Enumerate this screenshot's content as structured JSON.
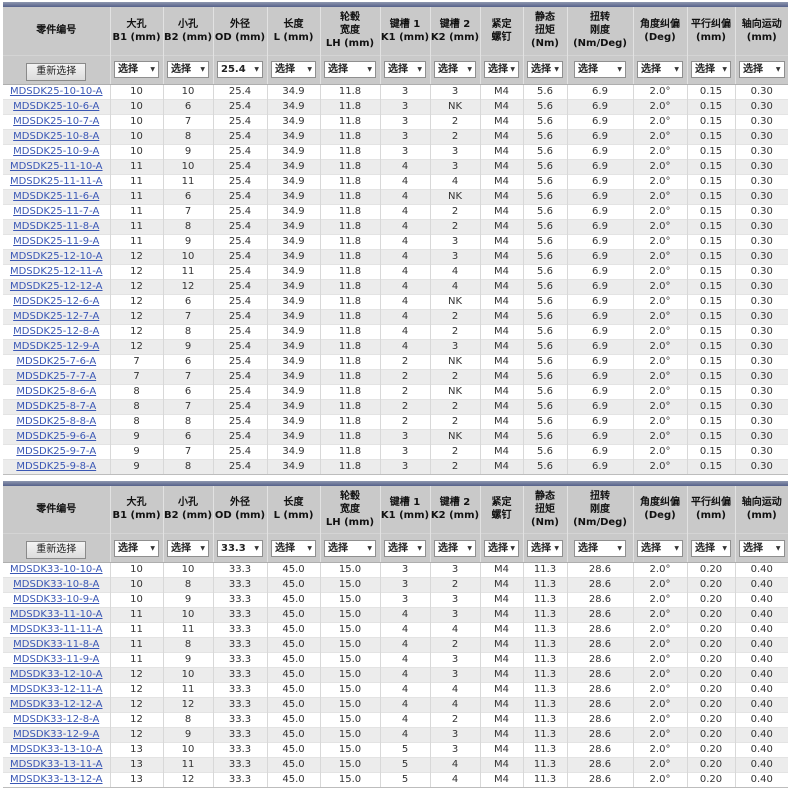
{
  "colors": {
    "header_bg": "#c9c9c9",
    "row_alt_bg": "#ececec",
    "link_color": "#3a57b5",
    "top_bar_dark": "#55618a",
    "top_bar_light": "#8e97af",
    "text_color": "#333333"
  },
  "filter": {
    "reset_button_label": "重新选择",
    "select_placeholder": "选择",
    "dropdown_arrow": "▼"
  },
  "columns": [
    {
      "id": "part_number",
      "label": "零件编号"
    },
    {
      "id": "b1",
      "label": "大孔\nB1 (mm)"
    },
    {
      "id": "b2",
      "label": "小孔\nB2 (mm)"
    },
    {
      "id": "od",
      "label": "外径\nOD (mm)"
    },
    {
      "id": "length",
      "label": "长度\nL (mm)"
    },
    {
      "id": "hub_width",
      "label": "轮毂\n宽度\nLH (mm)"
    },
    {
      "id": "k1",
      "label": "键槽 1\nK1 (mm)"
    },
    {
      "id": "k2",
      "label": "键槽 2\nK2 (mm)"
    },
    {
      "id": "set_screw",
      "label": "紧定\n螺钉"
    },
    {
      "id": "static_torque",
      "label": "静态\n扭矩\n(Nm)"
    },
    {
      "id": "torsional_stiffness",
      "label": "扭转\n刚度\n(Nm/Deg)"
    },
    {
      "id": "angular_misalignment",
      "label": "角度纠偏\n(Deg)"
    },
    {
      "id": "parallel_misalignment",
      "label": "平行纠偏\n(mm)"
    },
    {
      "id": "axial_motion",
      "label": "轴向运动\n(mm)"
    }
  ],
  "tables": [
    {
      "od_filter_value": "25.4",
      "rows": [
        [
          "MDSDK25-10-10-A",
          "10",
          "10",
          "25.4",
          "34.9",
          "11.8",
          "3",
          "3",
          "M4",
          "5.6",
          "6.9",
          "2.0°",
          "0.15",
          "0.30"
        ],
        [
          "MDSDK25-10-6-A",
          "10",
          "6",
          "25.4",
          "34.9",
          "11.8",
          "3",
          "NK",
          "M4",
          "5.6",
          "6.9",
          "2.0°",
          "0.15",
          "0.30"
        ],
        [
          "MDSDK25-10-7-A",
          "10",
          "7",
          "25.4",
          "34.9",
          "11.8",
          "3",
          "2",
          "M4",
          "5.6",
          "6.9",
          "2.0°",
          "0.15",
          "0.30"
        ],
        [
          "MDSDK25-10-8-A",
          "10",
          "8",
          "25.4",
          "34.9",
          "11.8",
          "3",
          "2",
          "M4",
          "5.6",
          "6.9",
          "2.0°",
          "0.15",
          "0.30"
        ],
        [
          "MDSDK25-10-9-A",
          "10",
          "9",
          "25.4",
          "34.9",
          "11.8",
          "3",
          "3",
          "M4",
          "5.6",
          "6.9",
          "2.0°",
          "0.15",
          "0.30"
        ],
        [
          "MDSDK25-11-10-A",
          "11",
          "10",
          "25.4",
          "34.9",
          "11.8",
          "4",
          "3",
          "M4",
          "5.6",
          "6.9",
          "2.0°",
          "0.15",
          "0.30"
        ],
        [
          "MDSDK25-11-11-A",
          "11",
          "11",
          "25.4",
          "34.9",
          "11.8",
          "4",
          "4",
          "M4",
          "5.6",
          "6.9",
          "2.0°",
          "0.15",
          "0.30"
        ],
        [
          "MDSDK25-11-6-A",
          "11",
          "6",
          "25.4",
          "34.9",
          "11.8",
          "4",
          "NK",
          "M4",
          "5.6",
          "6.9",
          "2.0°",
          "0.15",
          "0.30"
        ],
        [
          "MDSDK25-11-7-A",
          "11",
          "7",
          "25.4",
          "34.9",
          "11.8",
          "4",
          "2",
          "M4",
          "5.6",
          "6.9",
          "2.0°",
          "0.15",
          "0.30"
        ],
        [
          "MDSDK25-11-8-A",
          "11",
          "8",
          "25.4",
          "34.9",
          "11.8",
          "4",
          "2",
          "M4",
          "5.6",
          "6.9",
          "2.0°",
          "0.15",
          "0.30"
        ],
        [
          "MDSDK25-11-9-A",
          "11",
          "9",
          "25.4",
          "34.9",
          "11.8",
          "4",
          "3",
          "M4",
          "5.6",
          "6.9",
          "2.0°",
          "0.15",
          "0.30"
        ],
        [
          "MDSDK25-12-10-A",
          "12",
          "10",
          "25.4",
          "34.9",
          "11.8",
          "4",
          "3",
          "M4",
          "5.6",
          "6.9",
          "2.0°",
          "0.15",
          "0.30"
        ],
        [
          "MDSDK25-12-11-A",
          "12",
          "11",
          "25.4",
          "34.9",
          "11.8",
          "4",
          "4",
          "M4",
          "5.6",
          "6.9",
          "2.0°",
          "0.15",
          "0.30"
        ],
        [
          "MDSDK25-12-12-A",
          "12",
          "12",
          "25.4",
          "34.9",
          "11.8",
          "4",
          "4",
          "M4",
          "5.6",
          "6.9",
          "2.0°",
          "0.15",
          "0.30"
        ],
        [
          "MDSDK25-12-6-A",
          "12",
          "6",
          "25.4",
          "34.9",
          "11.8",
          "4",
          "NK",
          "M4",
          "5.6",
          "6.9",
          "2.0°",
          "0.15",
          "0.30"
        ],
        [
          "MDSDK25-12-7-A",
          "12",
          "7",
          "25.4",
          "34.9",
          "11.8",
          "4",
          "2",
          "M4",
          "5.6",
          "6.9",
          "2.0°",
          "0.15",
          "0.30"
        ],
        [
          "MDSDK25-12-8-A",
          "12",
          "8",
          "25.4",
          "34.9",
          "11.8",
          "4",
          "2",
          "M4",
          "5.6",
          "6.9",
          "2.0°",
          "0.15",
          "0.30"
        ],
        [
          "MDSDK25-12-9-A",
          "12",
          "9",
          "25.4",
          "34.9",
          "11.8",
          "4",
          "3",
          "M4",
          "5.6",
          "6.9",
          "2.0°",
          "0.15",
          "0.30"
        ],
        [
          "MDSDK25-7-6-A",
          "7",
          "6",
          "25.4",
          "34.9",
          "11.8",
          "2",
          "NK",
          "M4",
          "5.6",
          "6.9",
          "2.0°",
          "0.15",
          "0.30"
        ],
        [
          "MDSDK25-7-7-A",
          "7",
          "7",
          "25.4",
          "34.9",
          "11.8",
          "2",
          "2",
          "M4",
          "5.6",
          "6.9",
          "2.0°",
          "0.15",
          "0.30"
        ],
        [
          "MDSDK25-8-6-A",
          "8",
          "6",
          "25.4",
          "34.9",
          "11.8",
          "2",
          "NK",
          "M4",
          "5.6",
          "6.9",
          "2.0°",
          "0.15",
          "0.30"
        ],
        [
          "MDSDK25-8-7-A",
          "8",
          "7",
          "25.4",
          "34.9",
          "11.8",
          "2",
          "2",
          "M4",
          "5.6",
          "6.9",
          "2.0°",
          "0.15",
          "0.30"
        ],
        [
          "MDSDK25-8-8-A",
          "8",
          "8",
          "25.4",
          "34.9",
          "11.8",
          "2",
          "2",
          "M4",
          "5.6",
          "6.9",
          "2.0°",
          "0.15",
          "0.30"
        ],
        [
          "MDSDK25-9-6-A",
          "9",
          "6",
          "25.4",
          "34.9",
          "11.8",
          "3",
          "NK",
          "M4",
          "5.6",
          "6.9",
          "2.0°",
          "0.15",
          "0.30"
        ],
        [
          "MDSDK25-9-7-A",
          "9",
          "7",
          "25.4",
          "34.9",
          "11.8",
          "3",
          "2",
          "M4",
          "5.6",
          "6.9",
          "2.0°",
          "0.15",
          "0.30"
        ],
        [
          "MDSDK25-9-8-A",
          "9",
          "8",
          "25.4",
          "34.9",
          "11.8",
          "3",
          "2",
          "M4",
          "5.6",
          "6.9",
          "2.0°",
          "0.15",
          "0.30"
        ]
      ]
    },
    {
      "od_filter_value": "33.3",
      "rows": [
        [
          "MDSDK33-10-10-A",
          "10",
          "10",
          "33.3",
          "45.0",
          "15.0",
          "3",
          "3",
          "M4",
          "11.3",
          "28.6",
          "2.0°",
          "0.20",
          "0.40"
        ],
        [
          "MDSDK33-10-8-A",
          "10",
          "8",
          "33.3",
          "45.0",
          "15.0",
          "3",
          "2",
          "M4",
          "11.3",
          "28.6",
          "2.0°",
          "0.20",
          "0.40"
        ],
        [
          "MDSDK33-10-9-A",
          "10",
          "9",
          "33.3",
          "45.0",
          "15.0",
          "3",
          "3",
          "M4",
          "11.3",
          "28.6",
          "2.0°",
          "0.20",
          "0.40"
        ],
        [
          "MDSDK33-11-10-A",
          "11",
          "10",
          "33.3",
          "45.0",
          "15.0",
          "4",
          "3",
          "M4",
          "11.3",
          "28.6",
          "2.0°",
          "0.20",
          "0.40"
        ],
        [
          "MDSDK33-11-11-A",
          "11",
          "11",
          "33.3",
          "45.0",
          "15.0",
          "4",
          "4",
          "M4",
          "11.3",
          "28.6",
          "2.0°",
          "0.20",
          "0.40"
        ],
        [
          "MDSDK33-11-8-A",
          "11",
          "8",
          "33.3",
          "45.0",
          "15.0",
          "4",
          "2",
          "M4",
          "11.3",
          "28.6",
          "2.0°",
          "0.20",
          "0.40"
        ],
        [
          "MDSDK33-11-9-A",
          "11",
          "9",
          "33.3",
          "45.0",
          "15.0",
          "4",
          "3",
          "M4",
          "11.3",
          "28.6",
          "2.0°",
          "0.20",
          "0.40"
        ],
        [
          "MDSDK33-12-10-A",
          "12",
          "10",
          "33.3",
          "45.0",
          "15.0",
          "4",
          "3",
          "M4",
          "11.3",
          "28.6",
          "2.0°",
          "0.20",
          "0.40"
        ],
        [
          "MDSDK33-12-11-A",
          "12",
          "11",
          "33.3",
          "45.0",
          "15.0",
          "4",
          "4",
          "M4",
          "11.3",
          "28.6",
          "2.0°",
          "0.20",
          "0.40"
        ],
        [
          "MDSDK33-12-12-A",
          "12",
          "12",
          "33.3",
          "45.0",
          "15.0",
          "4",
          "4",
          "M4",
          "11.3",
          "28.6",
          "2.0°",
          "0.20",
          "0.40"
        ],
        [
          "MDSDK33-12-8-A",
          "12",
          "8",
          "33.3",
          "45.0",
          "15.0",
          "4",
          "2",
          "M4",
          "11.3",
          "28.6",
          "2.0°",
          "0.20",
          "0.40"
        ],
        [
          "MDSDK33-12-9-A",
          "12",
          "9",
          "33.3",
          "45.0",
          "15.0",
          "4",
          "3",
          "M4",
          "11.3",
          "28.6",
          "2.0°",
          "0.20",
          "0.40"
        ],
        [
          "MDSDK33-13-10-A",
          "13",
          "10",
          "33.3",
          "45.0",
          "15.0",
          "5",
          "3",
          "M4",
          "11.3",
          "28.6",
          "2.0°",
          "0.20",
          "0.40"
        ],
        [
          "MDSDK33-13-11-A",
          "13",
          "11",
          "33.3",
          "45.0",
          "15.0",
          "5",
          "4",
          "M4",
          "11.3",
          "28.6",
          "2.0°",
          "0.20",
          "0.40"
        ],
        [
          "MDSDK33-13-12-A",
          "13",
          "12",
          "33.3",
          "45.0",
          "15.0",
          "5",
          "4",
          "M4",
          "11.3",
          "28.6",
          "2.0°",
          "0.20",
          "0.40"
        ]
      ]
    }
  ]
}
